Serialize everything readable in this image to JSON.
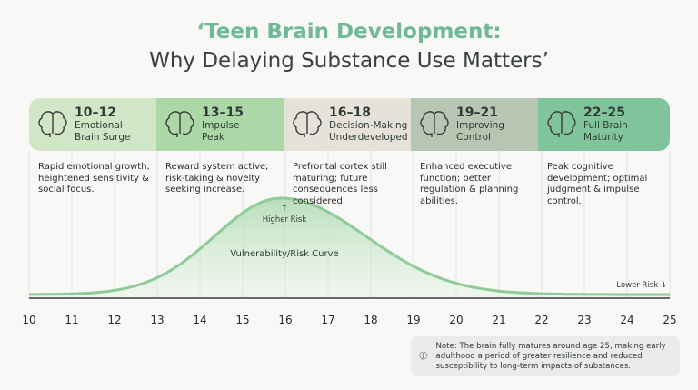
{
  "title": {
    "line1": "‘Teen Brain Development:",
    "line2": "Why Delaying Substance Use Matters’"
  },
  "stages": [
    {
      "age": "10–12",
      "label1": "Emotional",
      "label2": "Brain Surge",
      "desc": "Rapid emotional growth; heightened sensitivity & social focus.",
      "color": "#d0e6c6",
      "icon": "brain-heart-icon"
    },
    {
      "age": "13–15",
      "label1": "Impulse",
      "label2": "Peak",
      "desc": "Reward system active; risk-taking & novelty seeking increase.",
      "color": "#acd8a8",
      "icon": "brain-burst-icon"
    },
    {
      "age": "16–18",
      "label1": "Decision-Making",
      "label2": "Underdeveloped",
      "desc": "Prefrontal cortex still maturing; future consequences less considered.",
      "color": "#e7e2d9",
      "icon": "brain-scale-icon"
    },
    {
      "age": "19–21",
      "label1": "Improving",
      "label2": "Control",
      "desc": "Enhanced executive function; better regulation & planning abilities.",
      "color": "#b7c6b3",
      "icon": "brain-gear-icon"
    },
    {
      "age": "22–25",
      "label1": "Full Brain",
      "label2": "Maturity",
      "desc": "Peak cognitive development; optimal judgment & impulse control.",
      "color": "#80c49c",
      "icon": "brain-shield-icon"
    }
  ],
  "curve": {
    "label": "Vulnerability/Risk Curve",
    "high": "↑\nHigher Risk",
    "high_text": "Higher Risk",
    "low_text": "Lower Risk ↓",
    "color": "#8fcb98"
  },
  "axis": {
    "ticks": [
      "10",
      "11",
      "12",
      "13",
      "14",
      "15",
      "16",
      "17",
      "18",
      "19",
      "20",
      "21",
      "22",
      "23",
      "24",
      "25"
    ]
  },
  "note": {
    "text": "Note: The brain fully matures around age 25, making early adulthood a period of greater resilience and reduced susceptibility to long-term impacts of substances.",
    "icon": "brain-icon"
  }
}
